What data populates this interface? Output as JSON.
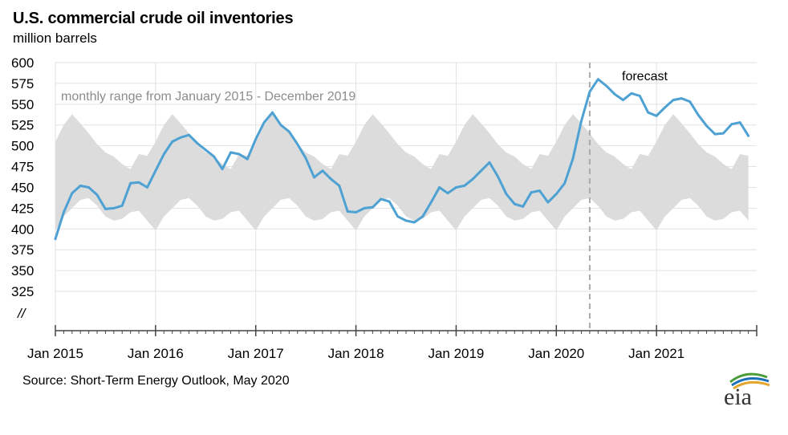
{
  "chart_data": {
    "type": "line",
    "title": "U.S. commercial crude oil inventories",
    "subtitle": "million barrels",
    "source": "Source: Short-Term Energy Outlook, May 2020",
    "logo_text": "eia",
    "axis_break_label": "//",
    "range_label": "monthly range from January 2015 - December 2019",
    "forecast_label": "forecast",
    "ylim": [
      300,
      600
    ],
    "yticks": [
      "600",
      "575",
      "550",
      "525",
      "500",
      "475",
      "450",
      "425",
      "400",
      "375",
      "350",
      "325"
    ],
    "ytick_values": [
      600,
      575,
      550,
      525,
      500,
      475,
      450,
      425,
      400,
      375,
      350,
      325
    ],
    "x_start": "Jan 2015",
    "x_months": 84,
    "xtick_labels": [
      "Jan 2015",
      "Jan 2016",
      "Jan 2017",
      "Jan 2018",
      "Jan 2019",
      "Jan 2020",
      "Jan 2021"
    ],
    "forecast_start_index": 64,
    "colors": {
      "line": "#4ea1d3",
      "band": "#dcdcdc",
      "grid": "#e2e2e2",
      "axis": "#444444",
      "divider": "#aaaaaa"
    },
    "range_band": {
      "name": "monthly range from January 2015 - December 2019",
      "min": [
        398,
        415,
        425,
        435,
        437,
        428,
        415,
        410,
        412,
        420,
        422,
        410
      ],
      "max": [
        505,
        525,
        538,
        527,
        515,
        502,
        492,
        487,
        478,
        472,
        490,
        488
      ]
    },
    "series": [
      {
        "name": "U.S. commercial crude oil inventories",
        "values": [
          388,
          420,
          443,
          452,
          450,
          441,
          424,
          425,
          428,
          455,
          456,
          450,
          470,
          490,
          505,
          510,
          513,
          503,
          495,
          487,
          472,
          492,
          490,
          484,
          508,
          528,
          540,
          525,
          517,
          502,
          485,
          462,
          470,
          460,
          452,
          421,
          420,
          425,
          426,
          436,
          433,
          415,
          410,
          408,
          415,
          432,
          450,
          443,
          450,
          452,
          460,
          470,
          480,
          463,
          442,
          430,
          427,
          444,
          446,
          432,
          442,
          455,
          485,
          530,
          565,
          580,
          572,
          562,
          555,
          563,
          560,
          540,
          536,
          546,
          555,
          557,
          553,
          537,
          524,
          514,
          515,
          526,
          528,
          512
        ]
      }
    ]
  }
}
